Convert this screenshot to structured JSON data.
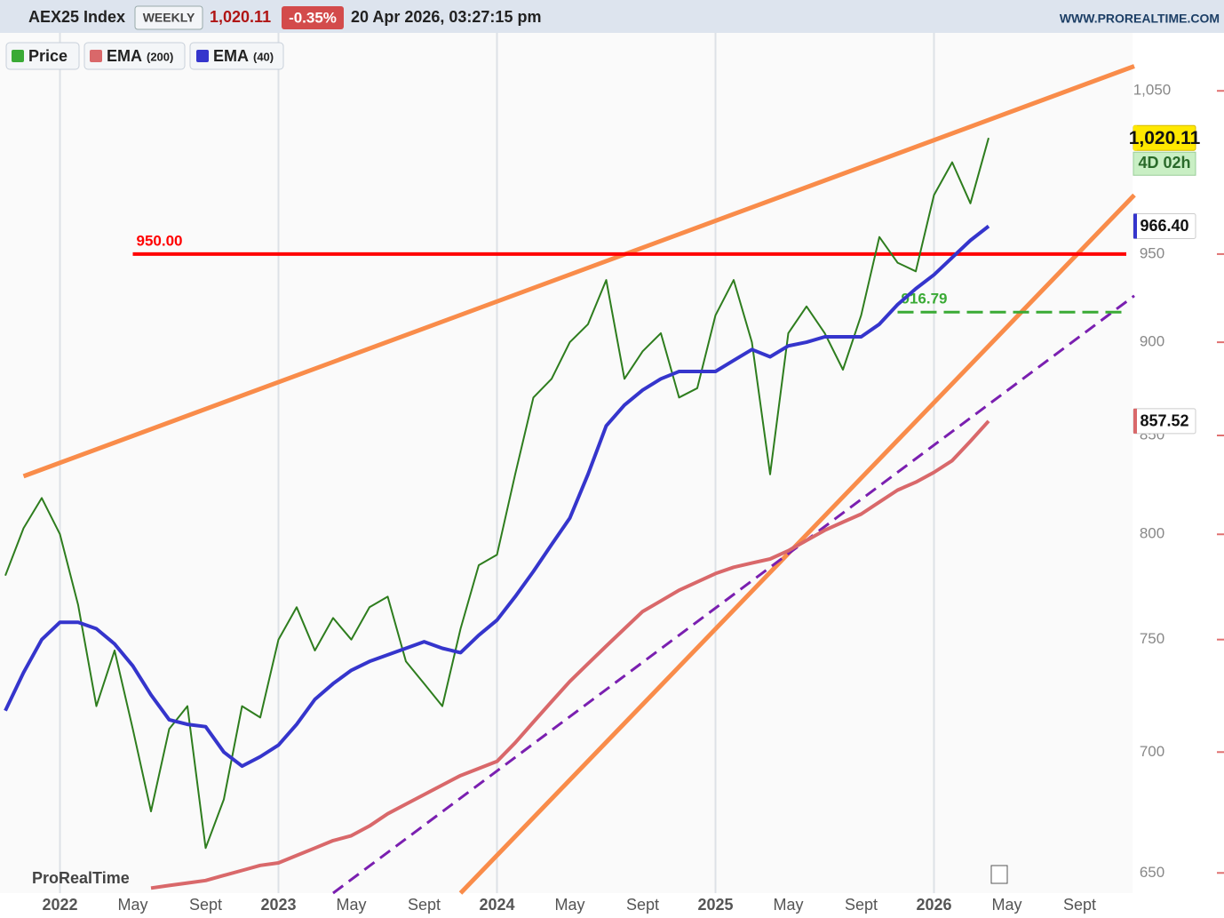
{
  "header": {
    "symbol": "AEX25 Index",
    "period": "WEEKLY",
    "price": "1,020.11",
    "change": "-0.35%",
    "datetime": "20 Apr 2026, 03:27:15 pm",
    "site": "WWW.PROREALTIME.COM"
  },
  "legend": {
    "price": "Price",
    "ema200": "EMA",
    "ema200_period": "(200)",
    "ema40": "EMA",
    "ema40_period": "(40)"
  },
  "watermark": "ProRealTime",
  "chart_data": {
    "type": "line",
    "log_scale": true,
    "x": [
      "2021-10",
      "2021-11",
      "2021-12",
      "2022-01",
      "2022-02",
      "2022-03",
      "2022-04",
      "2022-05",
      "2022-06",
      "2022-07",
      "2022-08",
      "2022-09",
      "2022-10",
      "2022-11",
      "2022-12",
      "2023-01",
      "2023-02",
      "2023-03",
      "2023-04",
      "2023-05",
      "2023-06",
      "2023-07",
      "2023-08",
      "2023-09",
      "2023-10",
      "2023-11",
      "2023-12",
      "2024-01",
      "2024-02",
      "2024-03",
      "2024-04",
      "2024-05",
      "2024-06",
      "2024-07",
      "2024-08",
      "2024-09",
      "2024-10",
      "2024-11",
      "2024-12",
      "2025-01",
      "2025-02",
      "2025-03",
      "2025-04",
      "2025-05",
      "2025-06",
      "2025-07",
      "2025-08",
      "2025-09",
      "2025-10",
      "2025-11",
      "2025-12",
      "2026-01",
      "2026-02",
      "2026-03",
      "2026-04"
    ],
    "series": [
      {
        "name": "Price",
        "color": "#2e7d1e",
        "values": [
          780,
          803,
          818,
          800,
          766,
          720,
          745,
          710,
          675,
          710,
          720,
          660,
          680,
          720,
          715,
          750,
          765,
          745,
          760,
          750,
          765,
          770,
          740,
          730,
          720,
          755,
          785,
          790,
          830,
          870,
          880,
          900,
          910,
          935,
          880,
          895,
          905,
          870,
          875,
          915,
          935,
          900,
          830,
          905,
          920,
          905,
          885,
          915,
          960,
          945,
          940,
          985,
          1005,
          980,
          1020.11
        ]
      },
      {
        "name": "EMA (200)",
        "color": "#d9686a",
        "values": [
          null,
          null,
          null,
          null,
          null,
          null,
          null,
          null,
          644,
          645,
          646,
          647,
          649,
          651,
          653,
          654,
          657,
          660,
          663,
          665,
          669,
          674,
          678,
          682,
          686,
          690,
          693,
          696,
          704,
          713,
          722,
          731,
          739,
          747,
          755,
          763,
          768,
          773,
          777,
          781,
          784,
          786,
          788,
          792,
          797,
          802,
          806,
          810,
          816,
          822,
          826,
          831,
          837,
          847,
          857.52
        ]
      },
      {
        "name": "EMA (40)",
        "color": "#3535cc",
        "values": [
          718,
          735,
          750,
          758,
          758,
          755,
          748,
          738,
          725,
          714,
          712,
          711,
          700,
          694,
          698,
          703,
          712,
          723,
          730,
          736,
          740,
          743,
          746,
          749,
          746,
          744,
          752,
          759,
          770,
          782,
          795,
          808,
          830,
          855,
          866,
          874,
          880,
          884,
          884,
          884,
          890,
          896,
          892,
          898,
          900,
          903,
          903,
          903,
          910,
          921,
          930,
          938,
          948,
          958,
          966.4
        ]
      }
    ],
    "tags": [
      {
        "value": 1020.11,
        "label": "1,020.11",
        "note": "4D 02h",
        "color": "#ffe800"
      },
      {
        "value": 966.4,
        "label": "966.40",
        "color": "#3535cc"
      },
      {
        "value": 857.52,
        "label": "857.52",
        "color": "#d9686a"
      }
    ],
    "levels": [
      {
        "value": 950,
        "label": "950.00",
        "color": "#ff0000",
        "start": "2022-05"
      },
      {
        "value": 916.79,
        "label": "916.79",
        "color": "#3aaa35",
        "dash": true,
        "start": "2025-11"
      }
    ],
    "trendlines": [
      {
        "color": "#f98c4a",
        "x": [
          "2021-11",
          "2026-12"
        ],
        "y": [
          829,
          1066
        ]
      },
      {
        "color": "#f98c4a",
        "x": [
          "2023-11",
          "2026-12"
        ],
        "y": [
          642,
          985
        ]
      },
      {
        "color": "#7a1fb0",
        "dash": true,
        "x": [
          "2023-04",
          "2026-12"
        ],
        "y": [
          642,
          926
        ]
      }
    ],
    "xlim": [
      "2021-10",
      "2026-12"
    ],
    "ylim": [
      642,
      1088
    ],
    "xticks": [
      {
        "value": "2022-01",
        "label": "2022"
      },
      {
        "value": "2022-05",
        "label": "May"
      },
      {
        "value": "2022-09",
        "label": "Sept"
      },
      {
        "value": "2023-01",
        "label": "2023"
      },
      {
        "value": "2023-05",
        "label": "May"
      },
      {
        "value": "2023-09",
        "label": "Sept"
      },
      {
        "value": "2024-01",
        "label": "2024"
      },
      {
        "value": "2024-05",
        "label": "May"
      },
      {
        "value": "2024-09",
        "label": "Sept"
      },
      {
        "value": "2025-01",
        "label": "2025"
      },
      {
        "value": "2025-05",
        "label": "May"
      },
      {
        "value": "2025-09",
        "label": "Sept"
      },
      {
        "value": "2026-01",
        "label": "2026"
      },
      {
        "value": "2026-05",
        "label": "May"
      },
      {
        "value": "2026-09",
        "label": "Sept"
      }
    ],
    "yticks": [
      650,
      700,
      750,
      800,
      850,
      900,
      950,
      {
        "value": 1050,
        "label": "1,050"
      }
    ]
  }
}
